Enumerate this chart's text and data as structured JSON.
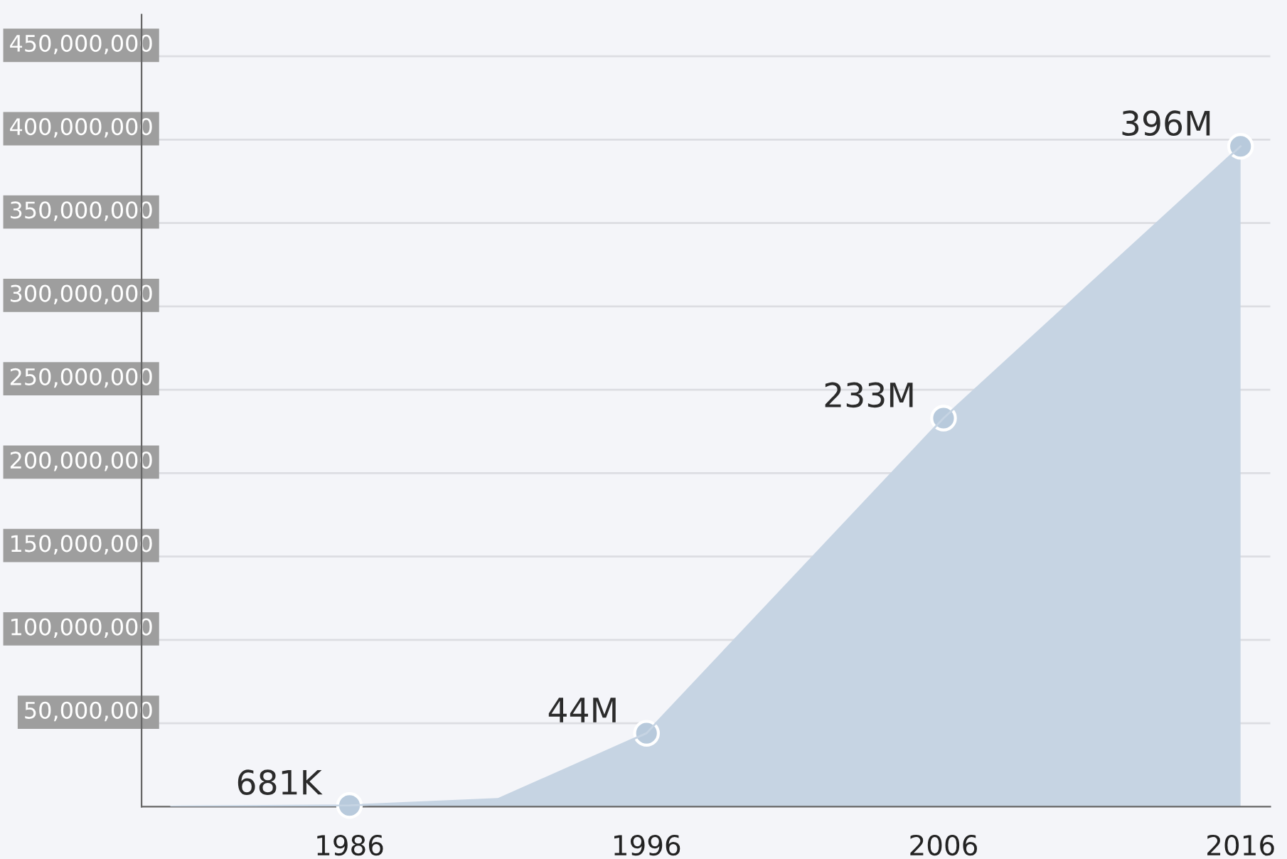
{
  "chart_data": {
    "type": "area",
    "x": [
      1980,
      1986,
      1991,
      1996,
      2006,
      2016
    ],
    "series": [
      {
        "color": "#c6d4e3",
        "values": [
          0,
          681000,
          4500000,
          44000000,
          233000000,
          396000000
        ]
      },
      {
        "type": "scatter",
        "color": "#b8cadc",
        "x": [
          1986,
          1996,
          2006,
          2016
        ],
        "values": [
          681000,
          44000000,
          233000000,
          396000000
        ],
        "marker": "circle",
        "value_labels": [
          "681K",
          "44M",
          "233M",
          "396M"
        ]
      }
    ],
    "xlim": [
      1979,
      2017
    ],
    "xticks": [
      1986,
      1996,
      2006,
      2016
    ],
    "ylim": [
      0,
      475000000
    ],
    "yticks": [
      {
        "value": 50000000,
        "label": "50,000,000"
      },
      {
        "value": 100000000,
        "label": "100,000,000"
      },
      {
        "value": 150000000,
        "label": "150,000,000"
      },
      {
        "value": 200000000,
        "label": "200,000,000"
      },
      {
        "value": 250000000,
        "label": "250,000,000"
      },
      {
        "value": 300000000,
        "label": "300,000,000"
      },
      {
        "value": 350000000,
        "label": "350,000,000"
      },
      {
        "value": 400000000,
        "label": "400,000,000"
      },
      {
        "value": 450000000,
        "label": "450,000,000"
      }
    ],
    "grid": "y"
  }
}
